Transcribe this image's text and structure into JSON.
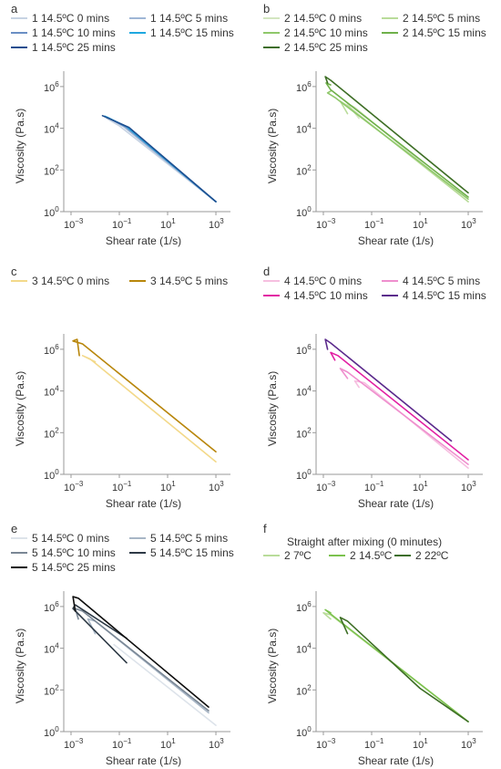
{
  "chart_data": [
    {
      "panel": "a",
      "type": "line",
      "xscale": "log",
      "yscale": "log",
      "xlabel": "Shear rate (1/s)",
      "ylabel": "Viscosity (Pa.s)",
      "xlim": [
        0.0005,
        2000
      ],
      "ylim": [
        1,
        2000000
      ],
      "xticks": [
        {
          "v": 0.001,
          "label": "10"
        },
        {
          "v": 0.1,
          "label": "10"
        },
        {
          "v": 10,
          "label": "10"
        },
        {
          "v": 1000,
          "label": "10"
        }
      ],
      "xtick_exponents": [
        "−3",
        "−1",
        "1",
        "3"
      ],
      "yticks": [
        {
          "v": 1,
          "label": "10"
        },
        {
          "v": 100,
          "label": "10"
        },
        {
          "v": 10000,
          "label": "10"
        },
        {
          "v": 1000000,
          "label": "10"
        }
      ],
      "ytick_exponents": [
        "0",
        "2",
        "4",
        "6"
      ],
      "legend_title": "",
      "legend_cols": 2,
      "series": [
        {
          "name": "1 14.5ºC 0 mins",
          "color": "#c7d3e3",
          "points": [
            [
              0.05,
              25000
            ],
            [
              0.03,
              30000
            ],
            [
              0.1,
              13000
            ],
            [
              1000,
              3
            ]
          ]
        },
        {
          "name": "1 14.5ºC 5 mins",
          "color": "#9fb6d6",
          "points": [
            [
              0.035,
              32000
            ],
            [
              0.15,
              12000
            ],
            [
              1000,
              3
            ]
          ]
        },
        {
          "name": "1 14.5ºC 10 mins",
          "color": "#6a8fc4",
          "points": [
            [
              0.03,
              35000
            ],
            [
              0.2,
              11000
            ],
            [
              1000,
              3
            ]
          ]
        },
        {
          "name": "1 14.5ºC 15 mins",
          "color": "#1ea8e0",
          "points": [
            [
              0.025,
              38000
            ],
            [
              0.2,
              12000
            ],
            [
              1000,
              3
            ]
          ]
        },
        {
          "name": "1 14.5ºC 25 mins",
          "color": "#1f4e8f",
          "points": [
            [
              0.02,
              40000
            ],
            [
              0.25,
              11000
            ],
            [
              1000,
              3
            ]
          ]
        }
      ]
    },
    {
      "panel": "b",
      "type": "line",
      "xscale": "log",
      "yscale": "log",
      "xlabel": "Shear rate (1/s)",
      "ylabel": "Viscosity (Pa.s)",
      "xlim": [
        0.0005,
        2000
      ],
      "ylim": [
        1,
        2000000
      ],
      "xticks": [
        {
          "v": 0.001,
          "label": "10"
        },
        {
          "v": 0.1,
          "label": "10"
        },
        {
          "v": 10,
          "label": "10"
        },
        {
          "v": 1000,
          "label": "10"
        }
      ],
      "xtick_exponents": [
        "−3",
        "−1",
        "1",
        "3"
      ],
      "yticks": [
        {
          "v": 1,
          "label": "10"
        },
        {
          "v": 100,
          "label": "10"
        },
        {
          "v": 10000,
          "label": "10"
        },
        {
          "v": 1000000,
          "label": "10"
        }
      ],
      "ytick_exponents": [
        "0",
        "2",
        "4",
        "6"
      ],
      "legend_title": "",
      "legend_cols": 2,
      "series": [
        {
          "name": "2 14.5ºC 0 mins",
          "color": "#d3e6c0",
          "points": [
            [
              0.03,
              30000
            ],
            [
              0.01,
              150000
            ],
            [
              0.02,
              100000
            ],
            [
              1000,
              3
            ]
          ]
        },
        {
          "name": "2 14.5ºC 5 mins",
          "color": "#b9dc9a",
          "points": [
            [
              0.01,
              50000
            ],
            [
              0.005,
              200000
            ],
            [
              0.01,
              120000
            ],
            [
              1000,
              3
            ]
          ]
        },
        {
          "name": "2 14.5ºC 10 mins",
          "color": "#8fc86a",
          "points": [
            [
              0.002,
              600000
            ],
            [
              0.0015,
              500000
            ],
            [
              0.003,
              300000
            ],
            [
              1000,
              4
            ]
          ]
        },
        {
          "name": "2 14.5ºC 15 mins",
          "color": "#6fb04a",
          "points": [
            [
              0.002,
              1200000
            ],
            [
              0.0013,
              1500000
            ],
            [
              0.002,
              700000
            ],
            [
              1000,
              5
            ]
          ]
        },
        {
          "name": "2 14.5ºC 25 mins",
          "color": "#3d6e25",
          "points": [
            [
              0.0015,
              1500000
            ],
            [
              0.0012,
              3000000
            ],
            [
              0.002,
              2000000
            ],
            [
              1000,
              8
            ]
          ]
        }
      ]
    },
    {
      "panel": "c",
      "type": "line",
      "xscale": "log",
      "yscale": "log",
      "xlabel": "Shear rate (1/s)",
      "ylabel": "Viscosity (Pa.s)",
      "xlim": [
        0.0005,
        2000
      ],
      "ylim": [
        1,
        2000000
      ],
      "xticks": [
        {
          "v": 0.001,
          "label": "10"
        },
        {
          "v": 0.1,
          "label": "10"
        },
        {
          "v": 10,
          "label": "10"
        },
        {
          "v": 1000,
          "label": "10"
        }
      ],
      "xtick_exponents": [
        "−3",
        "−1",
        "1",
        "3"
      ],
      "yticks": [
        {
          "v": 1,
          "label": "10"
        },
        {
          "v": 100,
          "label": "10"
        },
        {
          "v": 10000,
          "label": "10"
        },
        {
          "v": 1000000,
          "label": "10"
        }
      ],
      "ytick_exponents": [
        "0",
        "2",
        "4",
        "6"
      ],
      "legend_title": "",
      "legend_cols": 2,
      "series": [
        {
          "name": "3 14.5ºC 0 mins",
          "color": "#f3d98a",
          "points": [
            [
              0.01,
              250000
            ],
            [
              0.003,
              500000
            ],
            [
              0.006,
              350000
            ],
            [
              1000,
              4
            ]
          ]
        },
        {
          "name": "3 14.5ºC 5 mins",
          "color": "#b8860b",
          "points": [
            [
              0.0022,
              500000
            ],
            [
              0.0018,
              3000000
            ],
            [
              0.0012,
              2500000
            ],
            [
              0.003,
              1800000
            ],
            [
              1000,
              12
            ]
          ]
        }
      ]
    },
    {
      "panel": "d",
      "type": "line",
      "xscale": "log",
      "yscale": "log",
      "xlabel": "Shear rate (1/s)",
      "ylabel": "Viscosity (Pa.s)",
      "xlim": [
        0.0005,
        2000
      ],
      "ylim": [
        1,
        2000000
      ],
      "xticks": [
        {
          "v": 0.001,
          "label": "10"
        },
        {
          "v": 0.1,
          "label": "10"
        },
        {
          "v": 10,
          "label": "10"
        },
        {
          "v": 1000,
          "label": "10"
        }
      ],
      "xtick_exponents": [
        "−3",
        "−1",
        "1",
        "3"
      ],
      "yticks": [
        {
          "v": 1,
          "label": "10"
        },
        {
          "v": 100,
          "label": "10"
        },
        {
          "v": 10000,
          "label": "10"
        },
        {
          "v": 1000000,
          "label": "10"
        }
      ],
      "ytick_exponents": [
        "0",
        "2",
        "4",
        "6"
      ],
      "legend_title": "",
      "legend_cols": 2,
      "series": [
        {
          "name": "4 14.5ºC 0 mins",
          "color": "#f6bfe0",
          "points": [
            [
              0.03,
              15000
            ],
            [
              0.02,
              30000
            ],
            [
              0.05,
              25000
            ],
            [
              1000,
              2
            ]
          ]
        },
        {
          "name": "4 14.5ºC 5 mins",
          "color": "#ef8fce",
          "points": [
            [
              0.01,
              40000
            ],
            [
              0.005,
              120000
            ],
            [
              0.01,
              80000
            ],
            [
              1000,
              3
            ]
          ]
        },
        {
          "name": "4 14.5ºC 10 mins",
          "color": "#e21fa3",
          "points": [
            [
              0.003,
              300000
            ],
            [
              0.002,
              700000
            ],
            [
              0.004,
              500000
            ],
            [
              1000,
              5
            ]
          ]
        },
        {
          "name": "4 14.5ºC 15 mins",
          "color": "#5b2a8c",
          "points": [
            [
              0.0015,
              1000000
            ],
            [
              0.0012,
              3000000
            ],
            [
              0.002,
              2000000
            ],
            [
              200,
              40
            ]
          ]
        }
      ]
    },
    {
      "panel": "e",
      "type": "line",
      "xscale": "log",
      "yscale": "log",
      "xlabel": "Shear rate (1/s)",
      "ylabel": "Viscosity (Pa.s)",
      "xlim": [
        0.0005,
        2000
      ],
      "ylim": [
        1,
        2000000
      ],
      "xticks": [
        {
          "v": 0.001,
          "label": "10"
        },
        {
          "v": 0.1,
          "label": "10"
        },
        {
          "v": 10,
          "label": "10"
        },
        {
          "v": 1000,
          "label": "10"
        }
      ],
      "xtick_exponents": [
        "−3",
        "−1",
        "1",
        "3"
      ],
      "yticks": [
        {
          "v": 1,
          "label": "10"
        },
        {
          "v": 100,
          "label": "10"
        },
        {
          "v": 10000,
          "label": "10"
        },
        {
          "v": 1000000,
          "label": "10"
        }
      ],
      "ytick_exponents": [
        "0",
        "2",
        "4",
        "6"
      ],
      "legend_title": "",
      "legend_cols": 2,
      "series": [
        {
          "name": "5 14.5ºC 0 mins",
          "color": "#dde3ea",
          "points": [
            [
              0.06,
              15000
            ],
            [
              1000,
              2
            ]
          ]
        },
        {
          "name": "5 14.5ºC 5 mins",
          "color": "#a8b6c6",
          "points": [
            [
              0.01,
              50000
            ],
            [
              0.005,
              250000
            ],
            [
              0.01,
              200000
            ],
            [
              500,
              8
            ]
          ]
        },
        {
          "name": "5 14.5ºC 10 mins",
          "color": "#7a8795",
          "points": [
            [
              0.002,
              250000
            ],
            [
              0.0015,
              800000
            ],
            [
              0.003,
              600000
            ],
            [
              500,
              10
            ]
          ]
        },
        {
          "name": "5 14.5ºC 15 mins",
          "color": "#2e3a46",
          "points": [
            [
              0.2,
              2000
            ],
            [
              0.0012,
              800000
            ],
            [
              0.0015,
              1200000
            ],
            [
              0.2,
              30000
            ]
          ]
        },
        {
          "name": "5 14.5ºC 25 mins",
          "color": "#0d0d0d",
          "points": [
            [
              0.0015,
              600000
            ],
            [
              0.0012,
              3000000
            ],
            [
              0.002,
              2500000
            ],
            [
              500,
              15
            ]
          ]
        }
      ]
    },
    {
      "panel": "f",
      "type": "line",
      "xscale": "log",
      "yscale": "log",
      "xlabel": "Shear rate (1/s)",
      "ylabel": "Viscosity (Pa.s)",
      "xlim": [
        0.0005,
        2000
      ],
      "ylim": [
        1,
        2000000
      ],
      "xticks": [
        {
          "v": 0.001,
          "label": "10"
        },
        {
          "v": 0.1,
          "label": "10"
        },
        {
          "v": 10,
          "label": "10"
        },
        {
          "v": 1000,
          "label": "10"
        }
      ],
      "xtick_exponents": [
        "−3",
        "−1",
        "1",
        "3"
      ],
      "yticks": [
        {
          "v": 1,
          "label": "10"
        },
        {
          "v": 100,
          "label": "10"
        },
        {
          "v": 10000,
          "label": "10"
        },
        {
          "v": 1000000,
          "label": "10"
        }
      ],
      "ytick_exponents": [
        "0",
        "2",
        "4",
        "6"
      ],
      "legend_title": "Straight after mixing (0 minutes)",
      "legend_cols": 3,
      "series": [
        {
          "name": "2 7ºC",
          "color": "#b9dc9a",
          "points": [
            [
              0.002,
              250000
            ],
            [
              0.001,
              500000
            ],
            [
              0.002,
              400000
            ],
            [
              1000,
              3
            ]
          ]
        },
        {
          "name": "2 14.5ºC",
          "color": "#7cc24e",
          "points": [
            [
              0.002,
              500000
            ],
            [
              0.0012,
              700000
            ],
            [
              0.003,
              300000
            ],
            [
              1000,
              3
            ]
          ]
        },
        {
          "name": "2 22ºC",
          "color": "#3d6e25",
          "points": [
            [
              0.01,
              50000
            ],
            [
              0.005,
              300000
            ],
            [
              0.01,
              200000
            ],
            [
              10,
              120
            ],
            [
              1000,
              3
            ]
          ]
        }
      ]
    }
  ]
}
